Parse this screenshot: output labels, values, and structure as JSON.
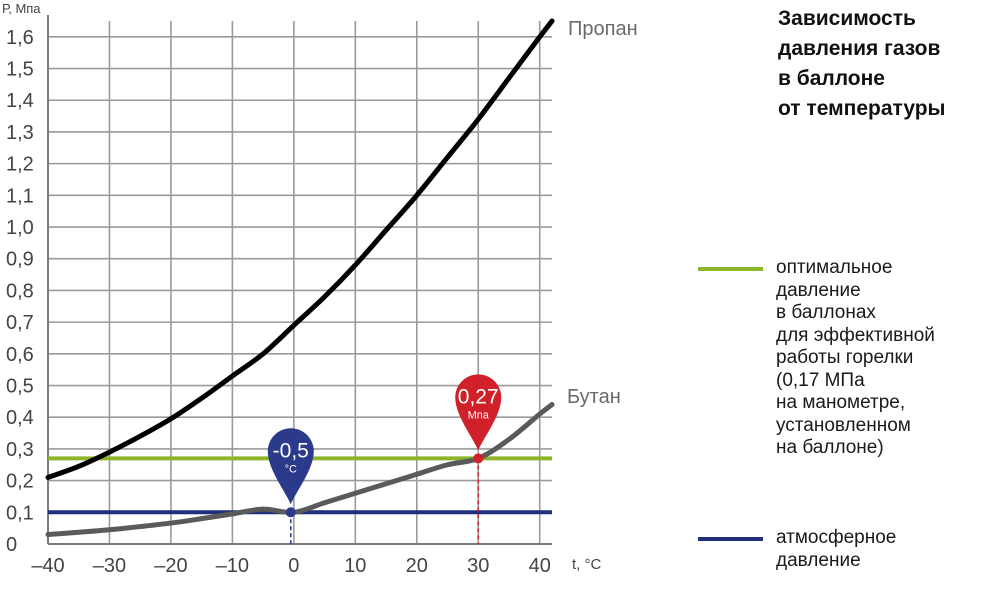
{
  "title_lines": [
    "Зависимость",
    "давления газов",
    "в баллоне",
    "от температуры"
  ],
  "colors": {
    "grid": "#9a9a9a",
    "axis": "#7a7a7a",
    "propane": "#000000",
    "butane": "#5a5a5a",
    "optimal": "#8db52a",
    "atmospheric": "#1f2f7a",
    "marker_blue": "#2b3a8a",
    "marker_red": "#d0202a"
  },
  "legend": [
    {
      "key": "optimal",
      "lines": [
        "оптимальное",
        "давление",
        "в баллонах",
        "для эффективной",
        "работы горелки",
        "(0,17 МПа",
        "на манометре,",
        "установленном",
        "на баллоне)"
      ]
    },
    {
      "key": "atmospheric",
      "lines": [
        "атмосферное",
        "давление"
      ]
    }
  ],
  "chart_data": {
    "type": "line",
    "xlabel": "t, °C",
    "ylabel": "Р, Мпа",
    "xlim": [
      -40,
      42
    ],
    "ylim": [
      0,
      1.65
    ],
    "x_ticks": [
      -40,
      -30,
      -20,
      -10,
      0,
      10,
      20,
      30,
      40
    ],
    "x_tick_labels": [
      "–40",
      "–30",
      "–20",
      "–10",
      "0",
      "10",
      "20",
      "30",
      "40"
    ],
    "y_ticks": [
      0,
      0.1,
      0.2,
      0.3,
      0.4,
      0.5,
      0.6,
      0.7,
      0.8,
      0.9,
      1.0,
      1.1,
      1.2,
      1.3,
      1.4,
      1.5,
      1.6
    ],
    "y_tick_labels": [
      "0",
      "0,1",
      "0,2",
      "0,3",
      "0,4",
      "0,5",
      "0,6",
      "0,7",
      "0,8",
      "0,9",
      "1,0",
      "1,1",
      "1,2",
      "1,3",
      "1,4",
      "1,5",
      "1,6"
    ],
    "grid": true,
    "series": [
      {
        "name": "Пропан",
        "x": [
          -40,
          -35,
          -30,
          -25,
          -20,
          -15,
          -10,
          -5,
          0,
          5,
          10,
          15,
          20,
          25,
          30,
          35,
          40,
          42
        ],
        "y": [
          0.21,
          0.245,
          0.29,
          0.34,
          0.395,
          0.46,
          0.53,
          0.6,
          0.69,
          0.78,
          0.88,
          0.99,
          1.1,
          1.22,
          1.34,
          1.47,
          1.6,
          1.65
        ]
      },
      {
        "name": "Бутан",
        "x": [
          -40,
          -35,
          -30,
          -25,
          -20,
          -15,
          -10,
          -5,
          0,
          5,
          10,
          15,
          20,
          25,
          30,
          35,
          40,
          42
        ],
        "y": [
          0.03,
          0.037,
          0.045,
          0.055,
          0.066,
          0.08,
          0.095,
          0.11,
          0.1,
          0.13,
          0.16,
          0.19,
          0.22,
          0.25,
          0.27,
          0.33,
          0.41,
          0.44
        ]
      }
    ],
    "reference_lines": [
      {
        "key": "optimal",
        "y": 0.27
      },
      {
        "key": "atmospheric",
        "y": 0.1
      }
    ],
    "markers": [
      {
        "key": "marker_blue",
        "x": -0.5,
        "y": 0.1,
        "value_label": "-0,5",
        "unit_label": "°C"
      },
      {
        "key": "marker_red",
        "x": 30,
        "y": 0.27,
        "value_label": "0,27",
        "unit_label": "Мпа"
      }
    ]
  }
}
